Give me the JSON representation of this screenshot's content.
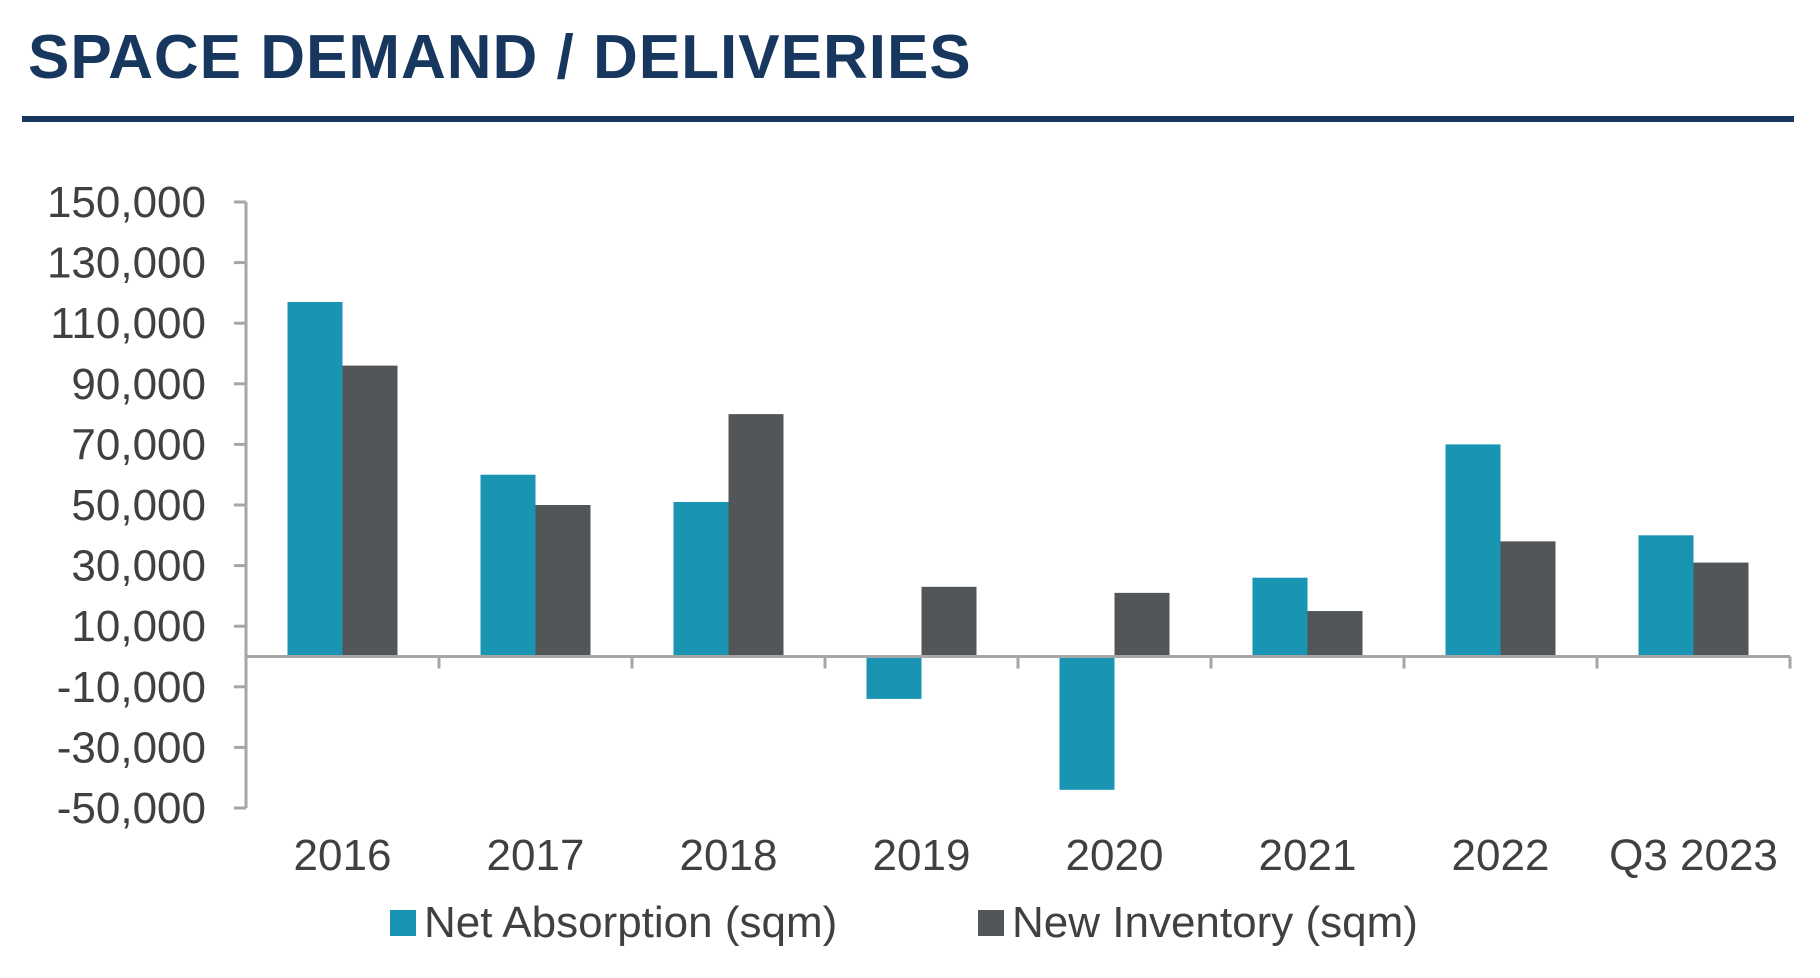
{
  "header": {
    "title": "SPACE DEMAND / DELIVERIES"
  },
  "chart_data": {
    "type": "bar",
    "categories": [
      "2016",
      "2017",
      "2018",
      "2019",
      "2020",
      "2021",
      "2022",
      "Q3 2023"
    ],
    "series": [
      {
        "name": "Net Absorption (sqm)",
        "color": "#1a94b3",
        "values": [
          117000,
          60000,
          51000,
          -14000,
          -44000,
          26000,
          70000,
          40000
        ]
      },
      {
        "name": "New Inventory (sqm)",
        "color": "#535659",
        "values": [
          96000,
          50000,
          80000,
          23000,
          21000,
          15000,
          38000,
          31000
        ]
      }
    ],
    "yticks": [
      "150,000",
      "130,000",
      "110,000",
      "90,000",
      "70,000",
      "50,000",
      "30,000",
      "10,000",
      "-10,000",
      "-30,000",
      "-50,000"
    ],
    "ylim": [
      -50000,
      150000
    ],
    "title": "",
    "xlabel": "",
    "ylabel": "",
    "grid": false,
    "legend": "bottom"
  }
}
